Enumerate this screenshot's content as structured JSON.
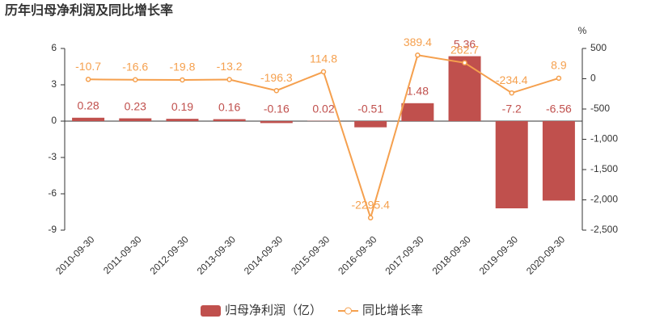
{
  "chart_data": {
    "type": "bar-line",
    "title": "历年归母净利润及同比增长率",
    "categories": [
      "2010-09-30",
      "2011-09-30",
      "2012-09-30",
      "2013-09-30",
      "2014-09-30",
      "2015-09-30",
      "2016-09-30",
      "2017-09-30",
      "2018-09-30",
      "2019-09-30",
      "2020-09-30"
    ],
    "series": [
      {
        "name": "归母净利润（亿）",
        "type": "bar",
        "color": "#c0504d",
        "values": [
          0.28,
          0.23,
          0.19,
          0.16,
          -0.16,
          0.02,
          -0.51,
          1.48,
          5.36,
          -7.2,
          -6.56
        ]
      },
      {
        "name": "同比增长率",
        "type": "line",
        "axis": "y2",
        "color": "#f5a04e",
        "values": [
          -10.7,
          -16.6,
          -19.8,
          -13.2,
          -196.3,
          114.8,
          -2295.4,
          389.4,
          262.7,
          -234.4,
          8.9
        ]
      }
    ],
    "ylim": [
      -9,
      6
    ],
    "yticks": [
      -9,
      -6,
      -3,
      0,
      3,
      6
    ],
    "y2label": "%",
    "y2lim": [
      -2500,
      500
    ],
    "y2ticks": [
      {
        "value": -2500,
        "label": "-2,500"
      },
      {
        "value": -2000,
        "label": "-2,000"
      },
      {
        "value": -1500,
        "label": "-1,500"
      },
      {
        "value": -1000,
        "label": "-1,000"
      },
      -500,
      0,
      500
    ],
    "legend": "bottom"
  }
}
